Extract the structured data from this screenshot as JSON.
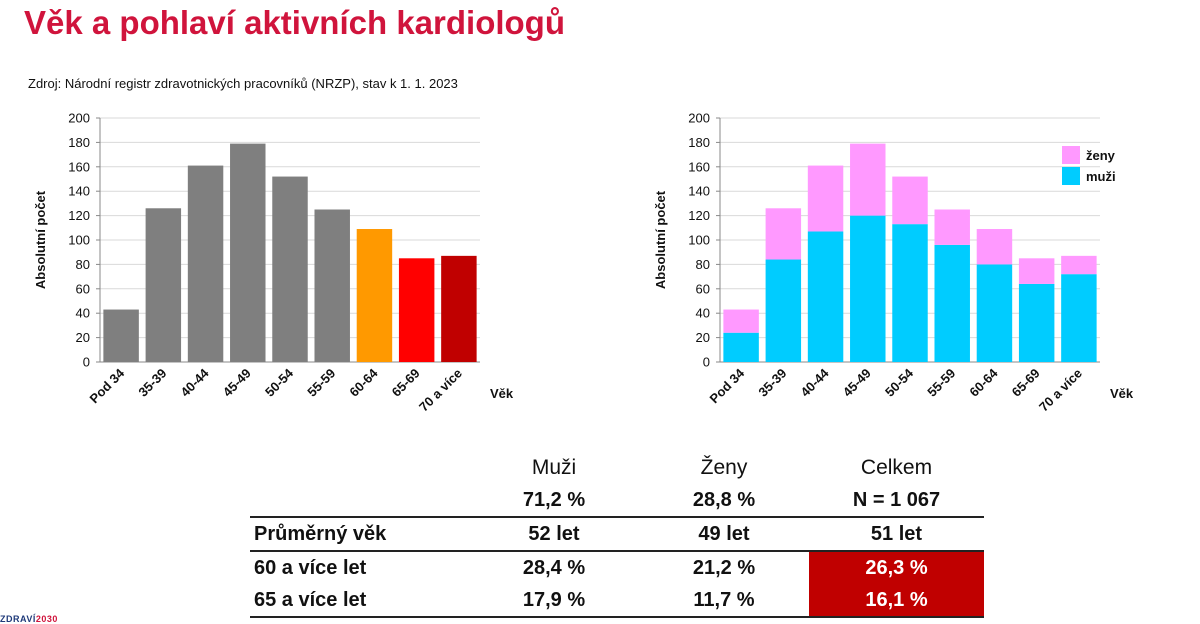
{
  "page": {
    "title": "Věk a pohlaví aktivních kardiologů",
    "source": "Zdroj: Národní registr zdravotnických pracovníků (NRZP), stav k 1. 1. 2023",
    "logo_main": "ZDRAVÍ",
    "logo_accent": "2030"
  },
  "chart_data": [
    {
      "type": "bar",
      "categories": [
        "Pod 34",
        "35-39",
        "40-44",
        "45-49",
        "50-54",
        "55-59",
        "60-64",
        "65-69",
        "70 a více"
      ],
      "values": [
        43,
        126,
        161,
        179,
        152,
        125,
        109,
        85,
        87
      ],
      "bar_colors": [
        "#7f7f7f",
        "#7f7f7f",
        "#7f7f7f",
        "#7f7f7f",
        "#7f7f7f",
        "#7f7f7f",
        "#ff9900",
        "#ff0000",
        "#c00000"
      ],
      "xlabel": "Věk",
      "ylabel": "Absolutní počet",
      "ylim": [
        0,
        200
      ],
      "yticks": [
        0,
        20,
        40,
        60,
        80,
        100,
        120,
        140,
        160,
        180,
        200
      ],
      "grid": true
    },
    {
      "type": "bar",
      "stacked": true,
      "categories": [
        "Pod 34",
        "35-39",
        "40-44",
        "45-49",
        "50-54",
        "55-59",
        "60-64",
        "65-69",
        "70 a více"
      ],
      "series": [
        {
          "name": "muži",
          "color": "#00ccff",
          "values": [
            24,
            84,
            107,
            120,
            113,
            96,
            80,
            64,
            72
          ]
        },
        {
          "name": "ženy",
          "color": "#ff99ff",
          "values": [
            19,
            42,
            54,
            59,
            39,
            29,
            29,
            21,
            15
          ]
        }
      ],
      "legend_order": [
        "ženy",
        "muži"
      ],
      "legend_position": "top-right",
      "xlabel": "Věk",
      "ylabel": "Absolutní počet",
      "ylim": [
        0,
        200
      ],
      "yticks": [
        0,
        20,
        40,
        60,
        80,
        100,
        120,
        140,
        160,
        180,
        200
      ],
      "grid": true
    }
  ],
  "summary_table": {
    "headers": [
      "Muži",
      "Ženy",
      "Celkem"
    ],
    "share_row": [
      "71,2 %",
      "28,8 %",
      "N = 1 067"
    ],
    "rows": [
      {
        "label": "Průměrný věk",
        "values": [
          "52 let",
          "49 let",
          "51 let"
        ]
      },
      {
        "label": "60 a více let",
        "values": [
          "28,4 %",
          "21,2 %",
          "26,3 %"
        ]
      },
      {
        "label": "65 a více let",
        "values": [
          "17,9 %",
          "11,7 %",
          "16,1 %"
        ]
      }
    ],
    "highlight_color": "#c00000"
  }
}
